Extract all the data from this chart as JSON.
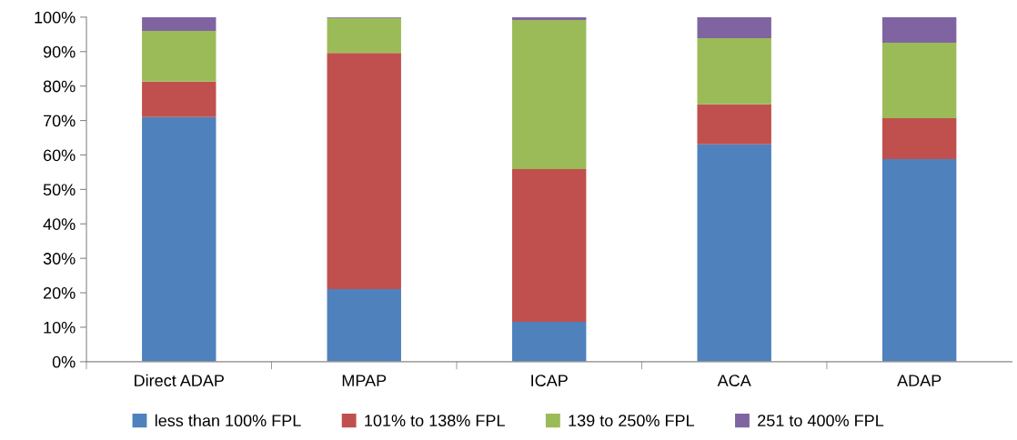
{
  "chart_data": {
    "type": "bar",
    "stacked": true,
    "categories": [
      "Direct ADAP",
      "MPAP",
      "ICAP",
      "ACA",
      "ADAP"
    ],
    "series": [
      {
        "name": "less than 100% FPL",
        "color": "#4f81bd",
        "values": [
          71.0,
          21.1,
          11.6,
          63.1,
          58.8
        ]
      },
      {
        "name": "101% to 138% FPL",
        "color": "#c0504d",
        "values": [
          10.3,
          68.5,
          44.3,
          11.6,
          11.9
        ]
      },
      {
        "name": "139 to 250% FPL",
        "color": "#9bbb59",
        "values": [
          14.7,
          10.2,
          43.3,
          19.2,
          21.9
        ]
      },
      {
        "name": "251 to 400% FPL",
        "color": "#8064a2",
        "values": [
          4.0,
          0.2,
          0.8,
          6.1,
          7.4
        ]
      }
    ],
    "ylim": [
      0,
      100
    ],
    "yticks": [
      {
        "value": 0,
        "label": "0%"
      },
      {
        "value": 10,
        "label": "10%"
      },
      {
        "value": 20,
        "label": "20%"
      },
      {
        "value": 30,
        "label": "30%"
      },
      {
        "value": 40,
        "label": "40%"
      },
      {
        "value": 50,
        "label": "50%"
      },
      {
        "value": 60,
        "label": "60%"
      },
      {
        "value": 70,
        "label": "70%"
      },
      {
        "value": 80,
        "label": "80%"
      },
      {
        "value": 90,
        "label": "90%"
      },
      {
        "value": 100,
        "label": "100%"
      }
    ],
    "grid": false,
    "legend": "bottom"
  }
}
